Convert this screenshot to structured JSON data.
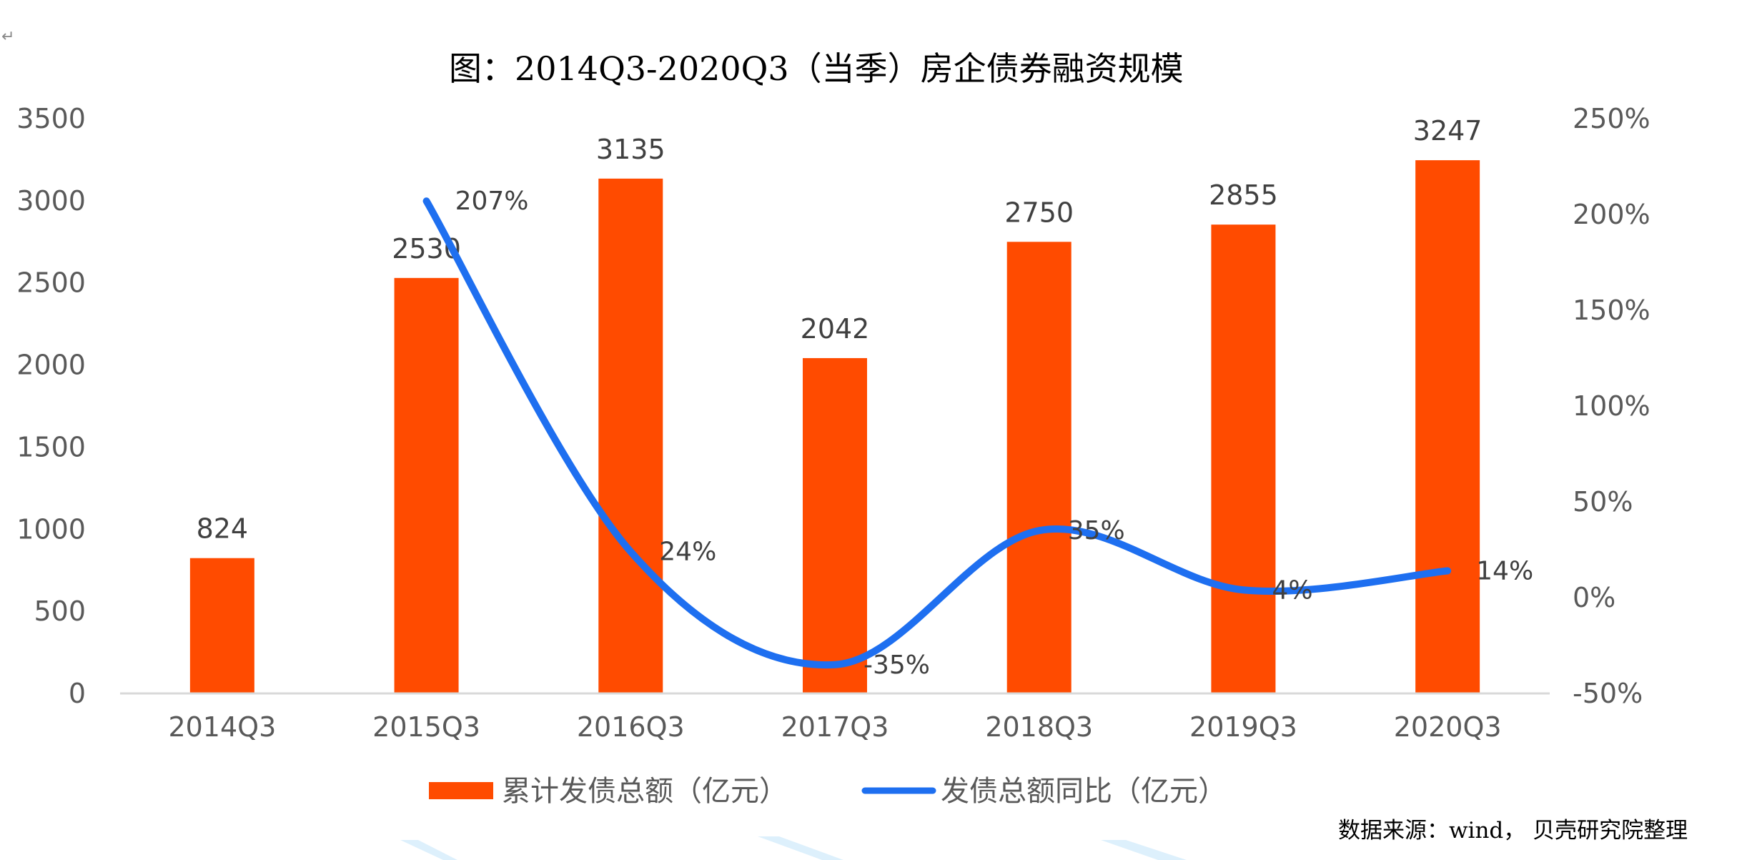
{
  "chart_data": {
    "type": "bar+line",
    "title": "图：2014Q3-2020Q3（当季）房企债券融资规模",
    "categories": [
      "2014Q3",
      "2015Q3",
      "2016Q3",
      "2017Q3",
      "2018Q3",
      "2019Q3",
      "2020Q3"
    ],
    "series": [
      {
        "name": "累计发债总额（亿元）",
        "type": "bar",
        "axis": "left",
        "color": "#FF4B00",
        "values": [
          824,
          2530,
          3135,
          2042,
          2750,
          2855,
          3247
        ],
        "labels": [
          "824",
          "2530",
          "3135",
          "2042",
          "2750",
          "2855",
          "3247"
        ]
      },
      {
        "name": "发债总额同比（亿元）",
        "type": "line",
        "axis": "right",
        "color": "#1E6FF0",
        "values": [
          null,
          207,
          24,
          -35,
          35,
          4,
          14
        ],
        "labels": [
          "",
          "207%",
          "24%",
          "-35%",
          "35%",
          "4%",
          "14%"
        ]
      }
    ],
    "y_left": {
      "min": 0,
      "max": 3500,
      "step": 500,
      "ticks": [
        "0",
        "500",
        "1000",
        "1500",
        "2000",
        "2500",
        "3000",
        "3500"
      ]
    },
    "y_right": {
      "min": -50,
      "max": 250,
      "step": 50,
      "ticks": [
        "-50%",
        "0%",
        "50%",
        "100%",
        "150%",
        "200%",
        "250%"
      ]
    },
    "grid": false,
    "legend_position": "bottom"
  },
  "source_note": "数据来源：wind， 贝壳研究院整理",
  "return_mark": "↵"
}
